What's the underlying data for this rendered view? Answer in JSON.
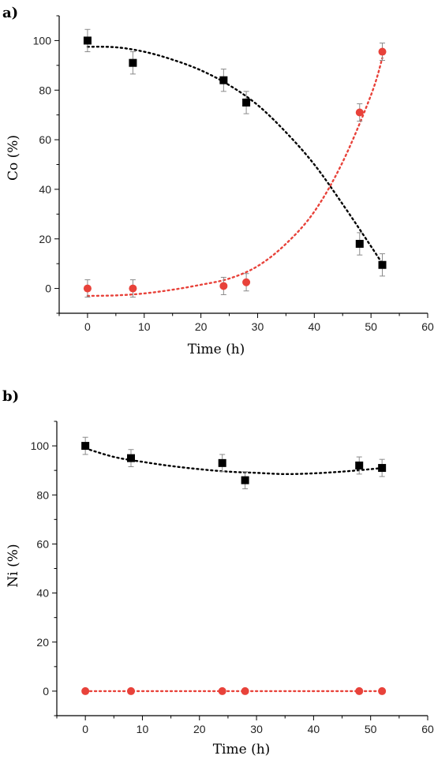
{
  "chart_data": [
    {
      "panel_label": "a)",
      "type": "scatter",
      "xlabel": "Time (h)",
      "ylabel": "Co (%)",
      "xlim": [
        -5,
        60
      ],
      "ylim": [
        -10,
        110
      ],
      "xticks": [
        0,
        10,
        20,
        30,
        40,
        50,
        60
      ],
      "yticks": [
        0,
        20,
        40,
        60,
        80,
        100
      ],
      "grid": false,
      "series": [
        {
          "marker": "square",
          "color": "#000000",
          "x": [
            0,
            8,
            24,
            28,
            48,
            52
          ],
          "y": [
            100,
            91,
            84,
            75,
            18,
            9.5
          ],
          "error": [
            4.5,
            4.5,
            4.5,
            4.5,
            4.5,
            4.5
          ],
          "fit": [
            [
              0,
              97.5
            ],
            [
              5,
              97.3
            ],
            [
              10,
              95.5
            ],
            [
              15,
              92.3
            ],
            [
              20,
              88
            ],
            [
              25,
              82
            ],
            [
              30,
              74
            ],
            [
              35,
              63
            ],
            [
              40,
              50
            ],
            [
              45,
              34
            ],
            [
              50,
              17
            ],
            [
              52,
              10
            ]
          ]
        },
        {
          "marker": "circle",
          "color": "#e8423a",
          "x": [
            0,
            8,
            24,
            28,
            48,
            52
          ],
          "y": [
            0,
            0,
            1,
            2.5,
            71,
            95.5
          ],
          "error": [
            3.5,
            3.5,
            3.5,
            3.5,
            3.5,
            3.5
          ],
          "fit": [
            [
              0,
              -3
            ],
            [
              5,
              -2.8
            ],
            [
              10,
              -2
            ],
            [
              15,
              -0.5
            ],
            [
              20,
              1.5
            ],
            [
              25,
              4
            ],
            [
              30,
              9
            ],
            [
              35,
              18
            ],
            [
              40,
              31
            ],
            [
              45,
              51
            ],
            [
              50,
              78
            ],
            [
              52,
              93
            ]
          ]
        }
      ]
    },
    {
      "panel_label": "b)",
      "type": "scatter",
      "xlabel": "Time (h)",
      "ylabel": "Ni (%)",
      "xlim": [
        -5,
        60
      ],
      "ylim": [
        -10,
        110
      ],
      "xticks": [
        0,
        10,
        20,
        30,
        40,
        50,
        60
      ],
      "yticks": [
        0,
        20,
        40,
        60,
        80,
        100
      ],
      "grid": false,
      "series": [
        {
          "marker": "square",
          "color": "#000000",
          "x": [
            0,
            8,
            24,
            28,
            48,
            52
          ],
          "y": [
            100,
            95,
            93,
            86,
            92,
            91
          ],
          "error": [
            3.5,
            3.5,
            3.5,
            3.5,
            3.5,
            3.5
          ],
          "fit": [
            [
              0,
              99
            ],
            [
              5,
              95.5
            ],
            [
              10,
              93.5
            ],
            [
              15,
              91.8
            ],
            [
              20,
              90.5
            ],
            [
              25,
              89.5
            ],
            [
              30,
              89
            ],
            [
              35,
              88.5
            ],
            [
              40,
              88.8
            ],
            [
              45,
              89.5
            ],
            [
              50,
              90.5
            ],
            [
              52,
              91
            ]
          ]
        },
        {
          "marker": "circle",
          "color": "#e8423a",
          "x": [
            0,
            8,
            24,
            28,
            48,
            52
          ],
          "y": [
            0,
            0,
            0,
            0,
            0,
            0
          ],
          "error": [
            0,
            0,
            0,
            0,
            0,
            0
          ],
          "fit": [
            [
              0,
              0
            ],
            [
              52,
              0
            ]
          ]
        }
      ]
    }
  ]
}
